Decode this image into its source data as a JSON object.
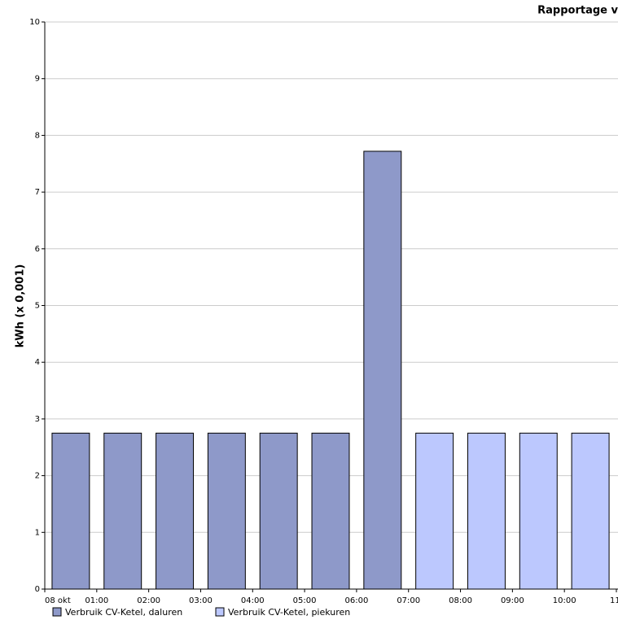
{
  "chart_data": {
    "type": "bar",
    "title": "Rapportage v",
    "y_label": "kWh (x 0,001)",
    "x": [
      0,
      1,
      2,
      3,
      4,
      5,
      6,
      7,
      8,
      9,
      10
    ],
    "xlim": [
      0,
      11
    ],
    "xticks": [
      {
        "value": 0,
        "label": "08 okt"
      },
      {
        "value": 1,
        "label": "01:00"
      },
      {
        "value": 2,
        "label": "02:00"
      },
      {
        "value": 3,
        "label": "03:00"
      },
      {
        "value": 4,
        "label": "04:00"
      },
      {
        "value": 5,
        "label": "05:00"
      },
      {
        "value": 6,
        "label": "06:00"
      },
      {
        "value": 7,
        "label": "07:00"
      },
      {
        "value": 8,
        "label": "08:00"
      },
      {
        "value": 9,
        "label": "09:00"
      },
      {
        "value": 10,
        "label": "10:00"
      },
      {
        "value": 11,
        "label": "11:"
      }
    ],
    "series": [
      {
        "name": "Verbruik CV-Ketel, daluren",
        "color": "#8e99c9",
        "values": [
          2.75,
          2.75,
          2.75,
          2.75,
          2.75,
          2.75,
          7.72,
          null,
          null,
          null,
          null
        ]
      },
      {
        "name": "Verbruik CV-Ketel, piekuren",
        "color": "#bcc8fe",
        "values": [
          null,
          null,
          null,
          null,
          null,
          null,
          null,
          2.75,
          2.75,
          2.75,
          2.75
        ]
      }
    ],
    "ylim": [
      0,
      10
    ],
    "yticks": [
      0,
      1,
      2,
      3,
      4,
      5,
      6,
      7,
      8,
      9,
      10
    ],
    "grid": true
  }
}
